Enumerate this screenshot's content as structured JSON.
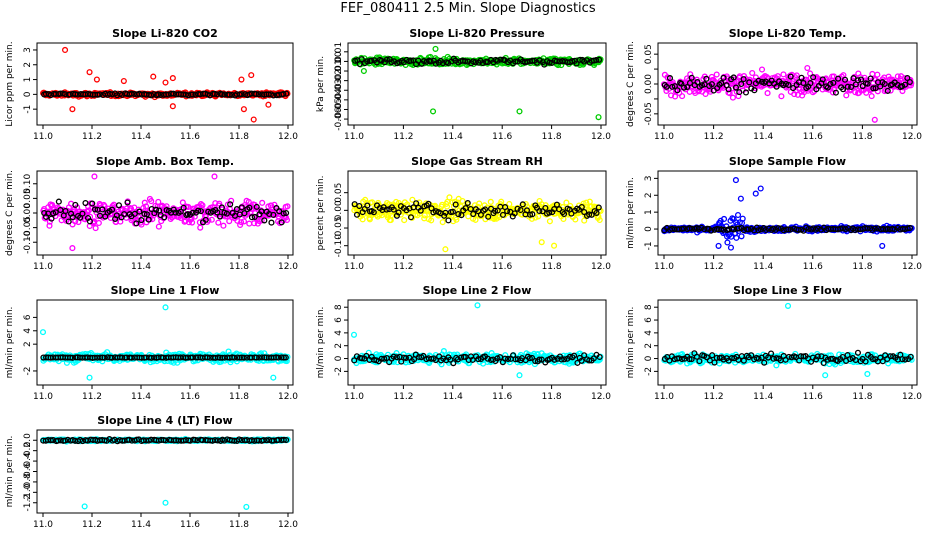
{
  "page_title": "FEF_080411  2.5 Min. Slope Diagnostics",
  "chart_data": [
    {
      "type": "scatter",
      "title": "Slope Li-820 CO2",
      "ylabel": "Licor ppm per min.",
      "xlim": [
        11.0,
        12.0
      ],
      "ylim": [
        -1.8,
        3.2
      ],
      "xticks": [
        11.0,
        11.2,
        11.4,
        11.6,
        11.8,
        12.0
      ],
      "xtick_labels": [
        "11.0",
        "11.2",
        "11.4",
        "11.6",
        "11.8",
        "12.0"
      ],
      "yticks": [
        -1,
        0,
        1,
        2,
        3
      ],
      "ytick_labels": [
        "-1",
        "0",
        "1",
        "2",
        "3"
      ],
      "series": [
        {
          "name": "all",
          "color": "#ff0000",
          "center": 0.0,
          "spread": 0.15
        },
        {
          "name": "selected",
          "color": "#000000",
          "center": 0.0,
          "spread": 0.08
        }
      ],
      "outliers": [
        [
          11.09,
          3.0
        ],
        [
          11.22,
          1.0
        ],
        [
          11.19,
          1.5
        ],
        [
          11.45,
          1.2
        ],
        [
          11.5,
          0.8
        ],
        [
          11.53,
          1.1
        ],
        [
          11.33,
          0.9
        ],
        [
          11.12,
          -1.0
        ],
        [
          11.86,
          -1.7
        ],
        [
          11.82,
          -1.0
        ],
        [
          11.85,
          1.3
        ],
        [
          11.81,
          1.0
        ],
        [
          11.53,
          -0.8
        ],
        [
          11.92,
          -0.7
        ]
      ]
    },
    {
      "type": "scatter",
      "title": "Slope Li-820 Pressure",
      "ylabel": "kPa per min.",
      "xlim": [
        11.0,
        12.0
      ],
      "ylim": [
        -0.062,
        0.015
      ],
      "xticks": [
        11.0,
        11.2,
        11.4,
        11.6,
        11.8,
        12.0
      ],
      "xtick_labels": [
        "11.0",
        "11.2",
        "11.4",
        "11.6",
        "11.8",
        "12.0"
      ],
      "yticks": [
        -0.06,
        -0.05,
        -0.04,
        -0.03,
        -0.02,
        -0.01,
        0.0,
        0.01
      ],
      "ytick_labels": [
        "-0.06",
        "-0.05",
        "-0.04",
        "-0.03",
        "-0.02",
        "-0.01",
        "0.00",
        "0.01"
      ],
      "series": [
        {
          "name": "all",
          "color": "#00cc00",
          "center": 0.0,
          "spread": 0.004
        },
        {
          "name": "selected",
          "color": "#000000",
          "center": 0.0,
          "spread": 0.003
        }
      ],
      "outliers": [
        [
          11.32,
          -0.052
        ],
        [
          11.67,
          -0.052
        ],
        [
          11.99,
          -0.058
        ],
        [
          11.04,
          -0.01
        ],
        [
          11.33,
          0.013
        ]
      ]
    },
    {
      "type": "scatter",
      "title": "Slope Li-820 Temp.",
      "ylabel": "degrees C per min.",
      "xlim": [
        11.0,
        12.0
      ],
      "ylim": [
        -0.062,
        0.062
      ],
      "xticks": [
        11.0,
        11.2,
        11.4,
        11.6,
        11.8,
        12.0
      ],
      "xtick_labels": [
        "11.0",
        "11.2",
        "11.4",
        "11.6",
        "11.8",
        "12.0"
      ],
      "yticks": [
        -0.05,
        0.0,
        0.05
      ],
      "ytick_labels": [
        "-0.05",
        "0.00",
        "0.05"
      ],
      "yticks_minor": [
        -0.025,
        0.025
      ],
      "ytick_labels_minor": [
        "-0.025",
        "0.025"
      ],
      "series": [
        {
          "name": "all",
          "color": "#ff00ff",
          "center": 0.0,
          "spread": 0.02
        },
        {
          "name": "selected",
          "color": "#000000",
          "center": 0.0,
          "spread": 0.015
        }
      ],
      "outliers": [
        [
          11.85,
          -0.06
        ]
      ]
    },
    {
      "type": "scatter",
      "title": "Slope Amb. Box Temp.",
      "ylabel": "degrees C per min.",
      "xlim": [
        11.0,
        12.0
      ],
      "ylim": [
        -0.13,
        0.13
      ],
      "xticks": [
        11.0,
        11.2,
        11.4,
        11.6,
        11.8,
        12.0
      ],
      "xtick_labels": [
        "11.0",
        "11.2",
        "11.4",
        "11.6",
        "11.8",
        "12.0"
      ],
      "yticks": [
        -0.1,
        -0.05,
        0.0,
        0.05,
        0.1
      ],
      "ytick_labels": [
        "-0.10",
        "-0.05",
        "0.00",
        "0.05",
        "0.10"
      ],
      "series": [
        {
          "name": "all",
          "color": "#ff00ff",
          "center": 0.0,
          "spread": 0.045
        },
        {
          "name": "selected",
          "color": "#000000",
          "center": 0.0,
          "spread": 0.035
        }
      ],
      "outliers": [
        [
          11.21,
          0.125
        ],
        [
          11.7,
          0.125
        ],
        [
          11.12,
          -0.12
        ]
      ]
    },
    {
      "type": "scatter",
      "title": "Slope Gas Stream RH",
      "ylabel": "percent per min.",
      "xlim": [
        11.0,
        12.0
      ],
      "ylim": [
        -0.115,
        0.1
      ],
      "xticks": [
        11.0,
        11.2,
        11.4,
        11.6,
        11.8,
        12.0
      ],
      "xtick_labels": [
        "11.0",
        "11.2",
        "11.4",
        "11.6",
        "11.8",
        "12.0"
      ],
      "yticks": [
        -0.1,
        -0.05,
        0.0,
        0.05
      ],
      "ytick_labels": [
        "-0.10",
        "-0.05",
        "0.00",
        "0.05"
      ],
      "series": [
        {
          "name": "all",
          "color": "#ffff00",
          "center": 0.0,
          "spread": 0.03
        },
        {
          "name": "selected",
          "color": "#000000",
          "center": 0.0,
          "spread": 0.025
        }
      ],
      "outliers": [
        [
          11.81,
          -0.1
        ],
        [
          11.76,
          -0.09
        ],
        [
          11.37,
          -0.11
        ]
      ]
    },
    {
      "type": "scatter",
      "title": "Slope Sample Flow",
      "ylabel": "ml/min per min.",
      "xlim": [
        11.0,
        12.0
      ],
      "ylim": [
        -1.3,
        3.2
      ],
      "xticks": [
        11.0,
        11.2,
        11.4,
        11.6,
        11.8,
        12.0
      ],
      "xtick_labels": [
        "11.0",
        "11.2",
        "11.4",
        "11.6",
        "11.8",
        "12.0"
      ],
      "yticks": [
        -1,
        0,
        1,
        2,
        3
      ],
      "ytick_labels": [
        "-1",
        "0",
        "1",
        "2",
        "3"
      ],
      "series": [
        {
          "name": "all",
          "color": "#0000ff",
          "center": 0.0,
          "spread": 0.15
        },
        {
          "name": "selected",
          "color": "#000000",
          "center": 0.0,
          "spread": 0.1
        }
      ],
      "burst": {
        "x": [
          11.22,
          11.32
        ],
        "spread": 1.0
      },
      "outliers": [
        [
          11.29,
          2.9
        ],
        [
          11.39,
          2.4
        ],
        [
          11.37,
          2.1
        ],
        [
          11.31,
          1.8
        ],
        [
          11.27,
          -1.1
        ],
        [
          11.22,
          -1.0
        ],
        [
          11.88,
          -1.0
        ]
      ]
    },
    {
      "type": "scatter",
      "title": "Slope Line 1 Flow",
      "ylabel": "ml/min per min.",
      "xlim": [
        11.0,
        12.0
      ],
      "ylim": [
        -3.5,
        8.0
      ],
      "xticks": [
        11.0,
        11.2,
        11.4,
        11.6,
        11.8,
        12.0
      ],
      "xtick_labels": [
        "11.0",
        "11.2",
        "11.4",
        "11.6",
        "11.8",
        "12.0"
      ],
      "yticks": [
        -2,
        2,
        4,
        6
      ],
      "ytick_labels": [
        "-2",
        "2",
        "4",
        "6"
      ],
      "series": [
        {
          "name": "all",
          "color": "#00ffff",
          "center": 0.0,
          "spread": 0.8
        },
        {
          "name": "selected",
          "color": "#000000",
          "center": 0.0,
          "spread": 0.05
        }
      ],
      "outliers": [
        [
          11.5,
          7.5
        ],
        [
          11.0,
          3.8
        ],
        [
          11.19,
          -3.0
        ],
        [
          11.94,
          -3.0
        ]
      ]
    },
    {
      "type": "scatter",
      "title": "Slope Line 2 Flow",
      "ylabel": "ml/min per min.",
      "xlim": [
        11.0,
        12.0
      ],
      "ylim": [
        -3.5,
        8.5
      ],
      "xticks": [
        11.0,
        11.2,
        11.4,
        11.6,
        11.8,
        12.0
      ],
      "xtick_labels": [
        "11.0",
        "11.2",
        "11.4",
        "11.6",
        "11.8",
        "12.0"
      ],
      "yticks": [
        -2,
        0,
        2,
        4,
        6,
        8
      ],
      "ytick_labels": [
        "-2",
        "0",
        "2",
        "4",
        "6",
        "8"
      ],
      "series": [
        {
          "name": "all",
          "color": "#00ffff",
          "center": 0.0,
          "spread": 0.8
        },
        {
          "name": "selected",
          "color": "#000000",
          "center": 0.0,
          "spread": 0.7
        }
      ],
      "outliers": [
        [
          11.5,
          8.3
        ],
        [
          11.0,
          3.7
        ],
        [
          11.67,
          -2.6
        ]
      ]
    },
    {
      "type": "scatter",
      "title": "Slope Line 3 Flow",
      "ylabel": "ml/min per min.",
      "xlim": [
        11.0,
        12.0
      ],
      "ylim": [
        -3.5,
        8.5
      ],
      "xticks": [
        11.0,
        11.2,
        11.4,
        11.6,
        11.8,
        12.0
      ],
      "xtick_labels": [
        "11.0",
        "11.2",
        "11.4",
        "11.6",
        "11.8",
        "12.0"
      ],
      "yticks": [
        -2,
        0,
        2,
        4,
        6,
        8
      ],
      "ytick_labels": [
        "-2",
        "0",
        "2",
        "4",
        "6",
        "8"
      ],
      "series": [
        {
          "name": "all",
          "color": "#00ffff",
          "center": 0.0,
          "spread": 0.8
        },
        {
          "name": "selected",
          "color": "#000000",
          "center": 0.0,
          "spread": 0.7
        }
      ],
      "outliers": [
        [
          11.5,
          8.2
        ],
        [
          11.65,
          -2.6
        ],
        [
          11.82,
          -2.4
        ]
      ]
    },
    {
      "type": "scatter",
      "title": "Slope Line 4 (LT) Flow",
      "ylabel": "ml/min per min.",
      "xlim": [
        11.0,
        12.0
      ],
      "ylim": [
        -1.32,
        0.12
      ],
      "xticks": [
        11.0,
        11.2,
        11.4,
        11.6,
        11.8,
        12.0
      ],
      "xtick_labels": [
        "11.0",
        "11.2",
        "11.4",
        "11.6",
        "11.8",
        "12.0"
      ],
      "yticks": [
        -1.2,
        -1.0,
        -0.8,
        -0.6,
        -0.4,
        -0.2,
        0.0
      ],
      "ytick_labels": [
        "-1.2",
        "-1.0",
        "-0.8",
        "-0.6",
        "-0.4",
        "-0.2",
        "0.0"
      ],
      "series": [
        {
          "name": "all",
          "color": "#00ffff",
          "center": 0.0,
          "spread": 0.02
        },
        {
          "name": "selected",
          "color": "#000000",
          "center": 0.0,
          "spread": 0.02
        }
      ],
      "outliers": [
        [
          11.17,
          -1.27
        ],
        [
          11.5,
          -1.2
        ],
        [
          11.83,
          -1.28
        ]
      ]
    }
  ]
}
